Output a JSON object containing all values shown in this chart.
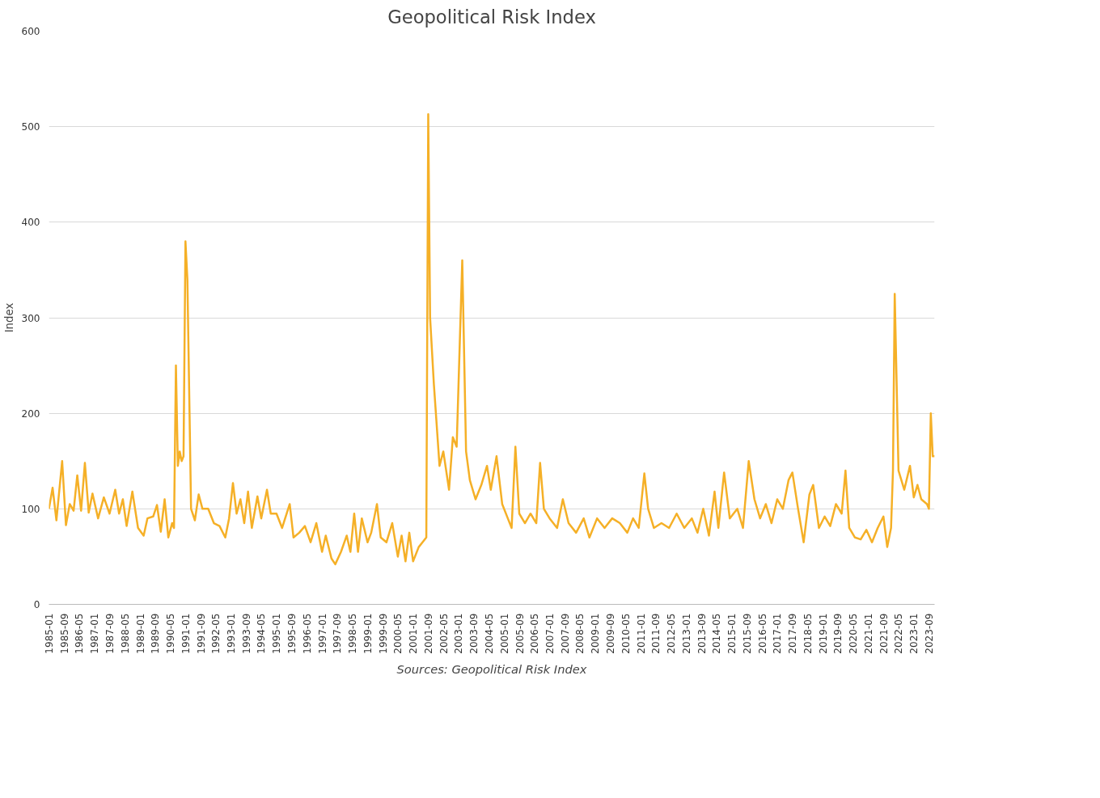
{
  "chart_data": {
    "type": "line",
    "title": "Geopolitical Risk Index",
    "ylabel": "Index",
    "annotations": [
      "Sources: Geopolitical Risk Index"
    ],
    "series": [
      {
        "color": "#f5b027",
        "x": [
          "1985-01",
          "1985-03",
          "1985-05",
          "1985-08",
          "1985-10",
          "1985-12",
          "1986-02",
          "1986-04",
          "1986-06",
          "1986-08",
          "1986-10",
          "1986-12",
          "1987-03",
          "1987-06",
          "1987-09",
          "1987-12",
          "1988-02",
          "1988-04",
          "1988-06",
          "1988-09",
          "1988-12",
          "1989-03",
          "1989-05",
          "1989-08",
          "1989-10",
          "1989-12",
          "1990-02",
          "1990-04",
          "1990-06",
          "1990-07",
          "1990-08",
          "1990-09",
          "1990-10",
          "1990-11",
          "1990-12",
          "1991-01",
          "1991-02",
          "1991-04",
          "1991-06",
          "1991-08",
          "1991-10",
          "1992-01",
          "1992-04",
          "1992-07",
          "1992-10",
          "1992-12",
          "1993-02",
          "1993-04",
          "1993-06",
          "1993-08",
          "1993-10",
          "1993-12",
          "1994-03",
          "1994-05",
          "1994-08",
          "1994-10",
          "1995-01",
          "1995-04",
          "1995-08",
          "1995-10",
          "1996-01",
          "1996-04",
          "1996-07",
          "1996-10",
          "1997-01",
          "1997-03",
          "1997-06",
          "1997-08",
          "1997-11",
          "1998-02",
          "1998-04",
          "1998-06",
          "1998-08",
          "1998-10",
          "1999-01",
          "1999-03",
          "1999-06",
          "1999-08",
          "1999-11",
          "2000-02",
          "2000-05",
          "2000-07",
          "2000-09",
          "2000-11",
          "2001-01",
          "2001-04",
          "2001-06",
          "2001-08",
          "2001-09",
          "2001-10",
          "2001-12",
          "2002-03",
          "2002-05",
          "2002-08",
          "2002-10",
          "2002-12",
          "2003-03",
          "2003-05",
          "2003-07",
          "2003-10",
          "2004-01",
          "2004-04",
          "2004-06",
          "2004-09",
          "2004-12",
          "2005-03",
          "2005-05",
          "2005-07",
          "2005-09",
          "2005-12",
          "2006-03",
          "2006-06",
          "2006-08",
          "2006-10",
          "2007-01",
          "2007-05",
          "2007-08",
          "2007-11",
          "2008-03",
          "2008-07",
          "2008-10",
          "2009-02",
          "2009-06",
          "2009-10",
          "2010-02",
          "2010-06",
          "2010-09",
          "2010-12",
          "2011-03",
          "2011-05",
          "2011-08",
          "2011-12",
          "2012-04",
          "2012-08",
          "2012-12",
          "2013-04",
          "2013-07",
          "2013-10",
          "2014-01",
          "2014-04",
          "2014-06",
          "2014-09",
          "2014-12",
          "2015-04",
          "2015-07",
          "2015-10",
          "2016-01",
          "2016-04",
          "2016-07",
          "2016-10",
          "2017-01",
          "2017-04",
          "2017-07",
          "2017-09",
          "2017-12",
          "2018-03",
          "2018-06",
          "2018-08",
          "2018-11",
          "2019-02",
          "2019-05",
          "2019-08",
          "2019-11",
          "2020-01",
          "2020-03",
          "2020-06",
          "2020-09",
          "2020-12",
          "2021-03",
          "2021-06",
          "2021-09",
          "2021-11",
          "2022-01",
          "2022-02",
          "2022-03",
          "2022-05",
          "2022-08",
          "2022-11",
          "2023-01",
          "2023-03",
          "2023-05",
          "2023-08",
          "2023-09",
          "2023-10",
          "2023-11",
          "2023-12"
        ],
        "values": [
          100,
          122,
          88,
          150,
          83,
          105,
          98,
          135,
          98,
          148,
          96,
          116,
          90,
          112,
          95,
          120,
          95,
          110,
          82,
          118,
          80,
          72,
          90,
          92,
          104,
          76,
          110,
          70,
          85,
          80,
          250,
          145,
          160,
          150,
          155,
          380,
          340,
          100,
          88,
          115,
          100,
          100,
          85,
          82,
          70,
          90,
          127,
          95,
          110,
          85,
          118,
          80,
          113,
          90,
          120,
          95,
          95,
          80,
          105,
          70,
          75,
          82,
          65,
          85,
          55,
          72,
          48,
          42,
          55,
          72,
          55,
          95,
          55,
          90,
          65,
          75,
          105,
          70,
          65,
          85,
          50,
          72,
          45,
          75,
          45,
          60,
          65,
          70,
          513,
          300,
          230,
          145,
          160,
          120,
          175,
          165,
          360,
          160,
          130,
          110,
          125,
          145,
          120,
          155,
          105,
          90,
          80,
          165,
          95,
          85,
          95,
          85,
          148,
          100,
          90,
          80,
          110,
          85,
          75,
          90,
          70,
          90,
          80,
          90,
          85,
          75,
          90,
          80,
          137,
          100,
          80,
          85,
          80,
          95,
          80,
          90,
          75,
          100,
          72,
          118,
          80,
          138,
          90,
          100,
          80,
          150,
          110,
          90,
          105,
          85,
          110,
          100,
          130,
          138,
          100,
          65,
          115,
          125,
          80,
          92,
          82,
          105,
          95,
          140,
          80,
          70,
          68,
          78,
          65,
          80,
          92,
          60,
          80,
          140,
          325,
          140,
          120,
          145,
          112,
          125,
          110,
          105,
          100,
          200,
          155,
          155
        ]
      }
    ],
    "xlim": [
      "1985-01",
      "2023-12"
    ],
    "xticks": [
      "1985-01",
      "1985-09",
      "1986-05",
      "1987-01",
      "1987-09",
      "1988-05",
      "1989-01",
      "1989-09",
      "1990-05",
      "1991-01",
      "1991-09",
      "1992-05",
      "1993-01",
      "1993-09",
      "1994-05",
      "1995-01",
      "1995-09",
      "1996-05",
      "1997-01",
      "1997-09",
      "1998-05",
      "1999-01",
      "1999-09",
      "2000-05",
      "2001-01",
      "2001-09",
      "2002-05",
      "2003-01",
      "2003-09",
      "2004-05",
      "2005-01",
      "2005-09",
      "2006-05",
      "2007-01",
      "2007-09",
      "2008-05",
      "2009-01",
      "2009-09",
      "2010-05",
      "2011-01",
      "2011-09",
      "2012-05",
      "2013-01",
      "2013-09",
      "2014-05",
      "2015-01",
      "2015-09",
      "2016-05",
      "2017-01",
      "2017-09",
      "2018-05",
      "2019-01",
      "2019-09",
      "2020-05",
      "2021-01",
      "2021-09",
      "2022-05",
      "2023-01",
      "2023-09"
    ],
    "ylim": [
      0,
      600
    ],
    "yticks": [
      0,
      100,
      200,
      300,
      400,
      500,
      600
    ],
    "grid": "y"
  }
}
